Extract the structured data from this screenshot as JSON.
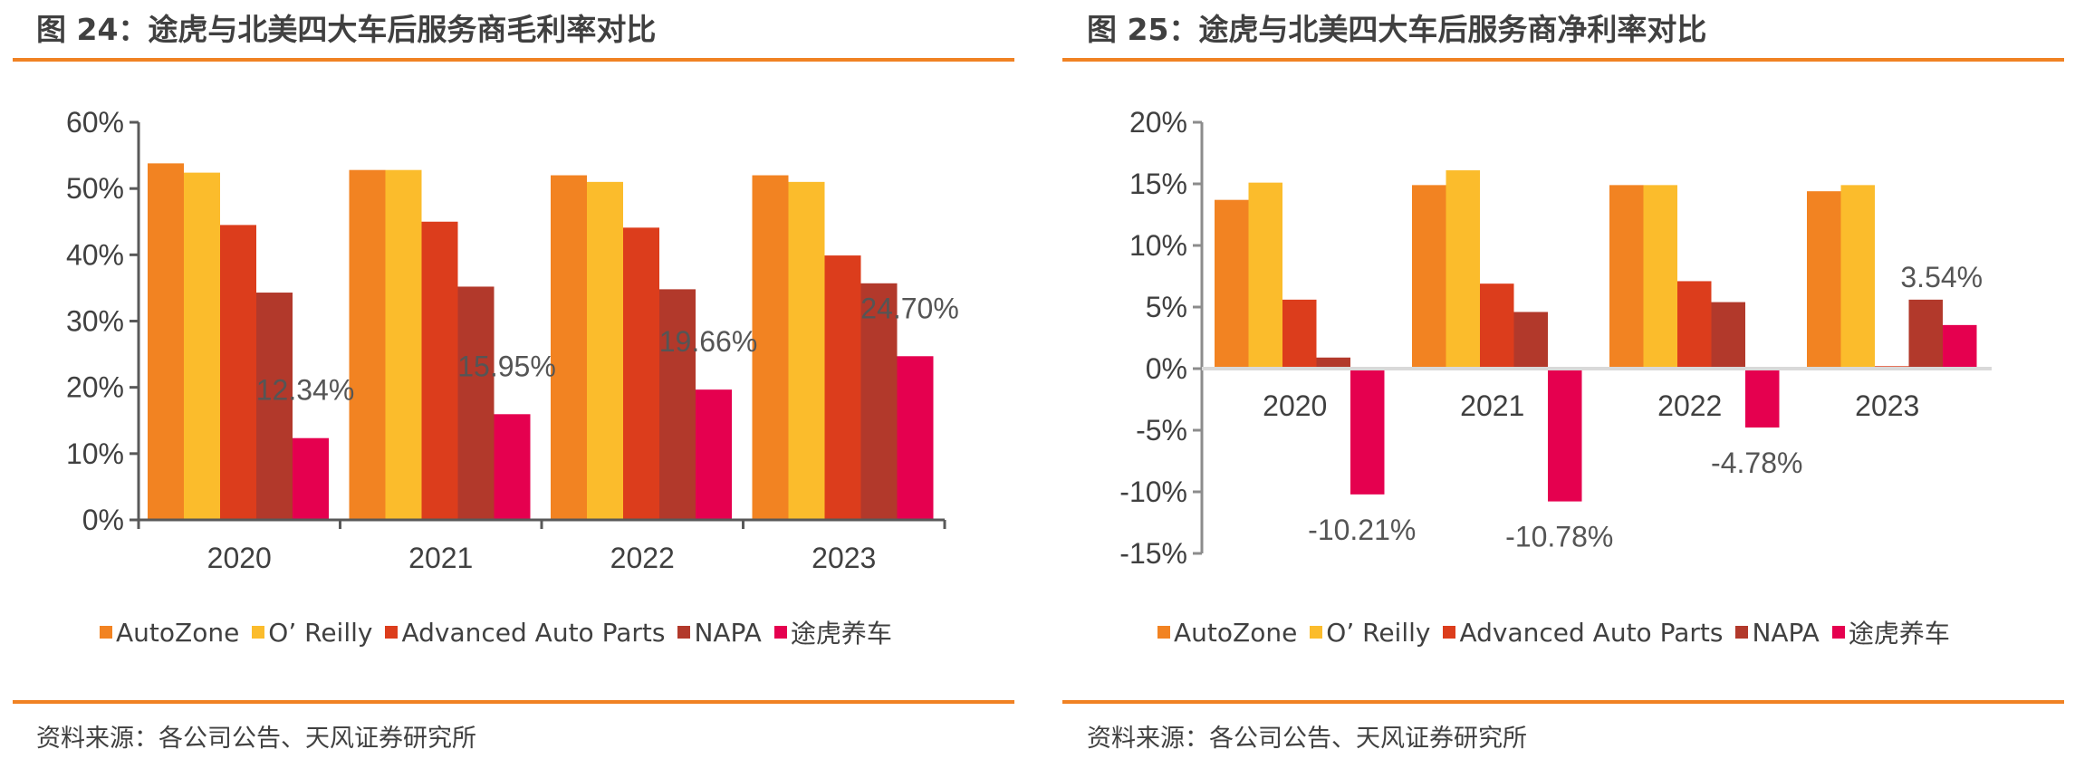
{
  "colors": {
    "accent_rule": "#f08223",
    "axis": "#595959",
    "zero_line": "#d9d9d9",
    "text": "#404040"
  },
  "series_colors": [
    "#f28322",
    "#fbbc2c",
    "#dc3d1c",
    "#b2392b",
    "#e5004f"
  ],
  "legend_labels": [
    "AutoZone",
    "O’ Reilly",
    "Advanced Auto Parts",
    "NAPA",
    "途虎养车"
  ],
  "footer_left": "资料来源：各公司公告、天风证券研究所",
  "footer_right": "资料来源：各公司公告、天风证券研究所",
  "chart_data": [
    {
      "id": "gross",
      "type": "bar",
      "title": "图 24：途虎与北美四大车后服务商毛利率对比",
      "xlabel": "",
      "ylabel": "",
      "categories": [
        "2020",
        "2021",
        "2022",
        "2023"
      ],
      "ylim": [
        0,
        60
      ],
      "yticks": [
        0,
        10,
        20,
        30,
        40,
        50,
        60
      ],
      "ytick_labels": [
        "0%",
        "10%",
        "20%",
        "30%",
        "40%",
        "50%",
        "60%"
      ],
      "grid": false,
      "legend": "bottom",
      "series": [
        {
          "name": "AutoZone",
          "values": [
            53.8,
            52.8,
            52.0,
            52.0
          ]
        },
        {
          "name": "O’ Reilly",
          "values": [
            52.4,
            52.8,
            51.0,
            51.0
          ]
        },
        {
          "name": "Advanced Auto Parts",
          "values": [
            44.5,
            45.0,
            44.1,
            39.9
          ]
        },
        {
          "name": "NAPA",
          "values": [
            34.3,
            35.2,
            34.8,
            35.7
          ]
        },
        {
          "name": "途虎养车",
          "values": [
            12.34,
            15.95,
            19.66,
            24.7
          ]
        }
      ],
      "data_labels": {
        "series": "途虎养车",
        "labels": [
          "12.34%",
          "15.95%",
          "19.66%",
          "24.70%"
        ]
      }
    },
    {
      "id": "net",
      "type": "bar",
      "title": "图 25：途虎与北美四大车后服务商净利率对比",
      "xlabel": "",
      "ylabel": "",
      "categories": [
        "2020",
        "2021",
        "2022",
        "2023"
      ],
      "ylim": [
        -15,
        20
      ],
      "yticks": [
        -15,
        -10,
        -5,
        0,
        5,
        10,
        15,
        20
      ],
      "ytick_labels": [
        "-15%",
        "-10%",
        "-5%",
        "0%",
        "5%",
        "10%",
        "15%",
        "20%"
      ],
      "grid": false,
      "legend": "bottom",
      "series": [
        {
          "name": "AutoZone",
          "values": [
            13.7,
            14.9,
            14.9,
            14.4
          ]
        },
        {
          "name": "O’ Reilly",
          "values": [
            15.1,
            16.1,
            14.9,
            14.9
          ]
        },
        {
          "name": "Advanced Auto Parts",
          "values": [
            5.6,
            6.9,
            7.1,
            0.2
          ]
        },
        {
          "name": "NAPA",
          "values": [
            0.9,
            4.6,
            5.4,
            5.6
          ]
        },
        {
          "name": "途虎养车",
          "values": [
            -10.21,
            -10.78,
            -4.78,
            3.54
          ]
        }
      ],
      "data_labels": {
        "series": "途虎养车",
        "labels": [
          "-10.21%",
          "-10.78%",
          "-4.78%",
          "3.54%"
        ]
      }
    }
  ]
}
